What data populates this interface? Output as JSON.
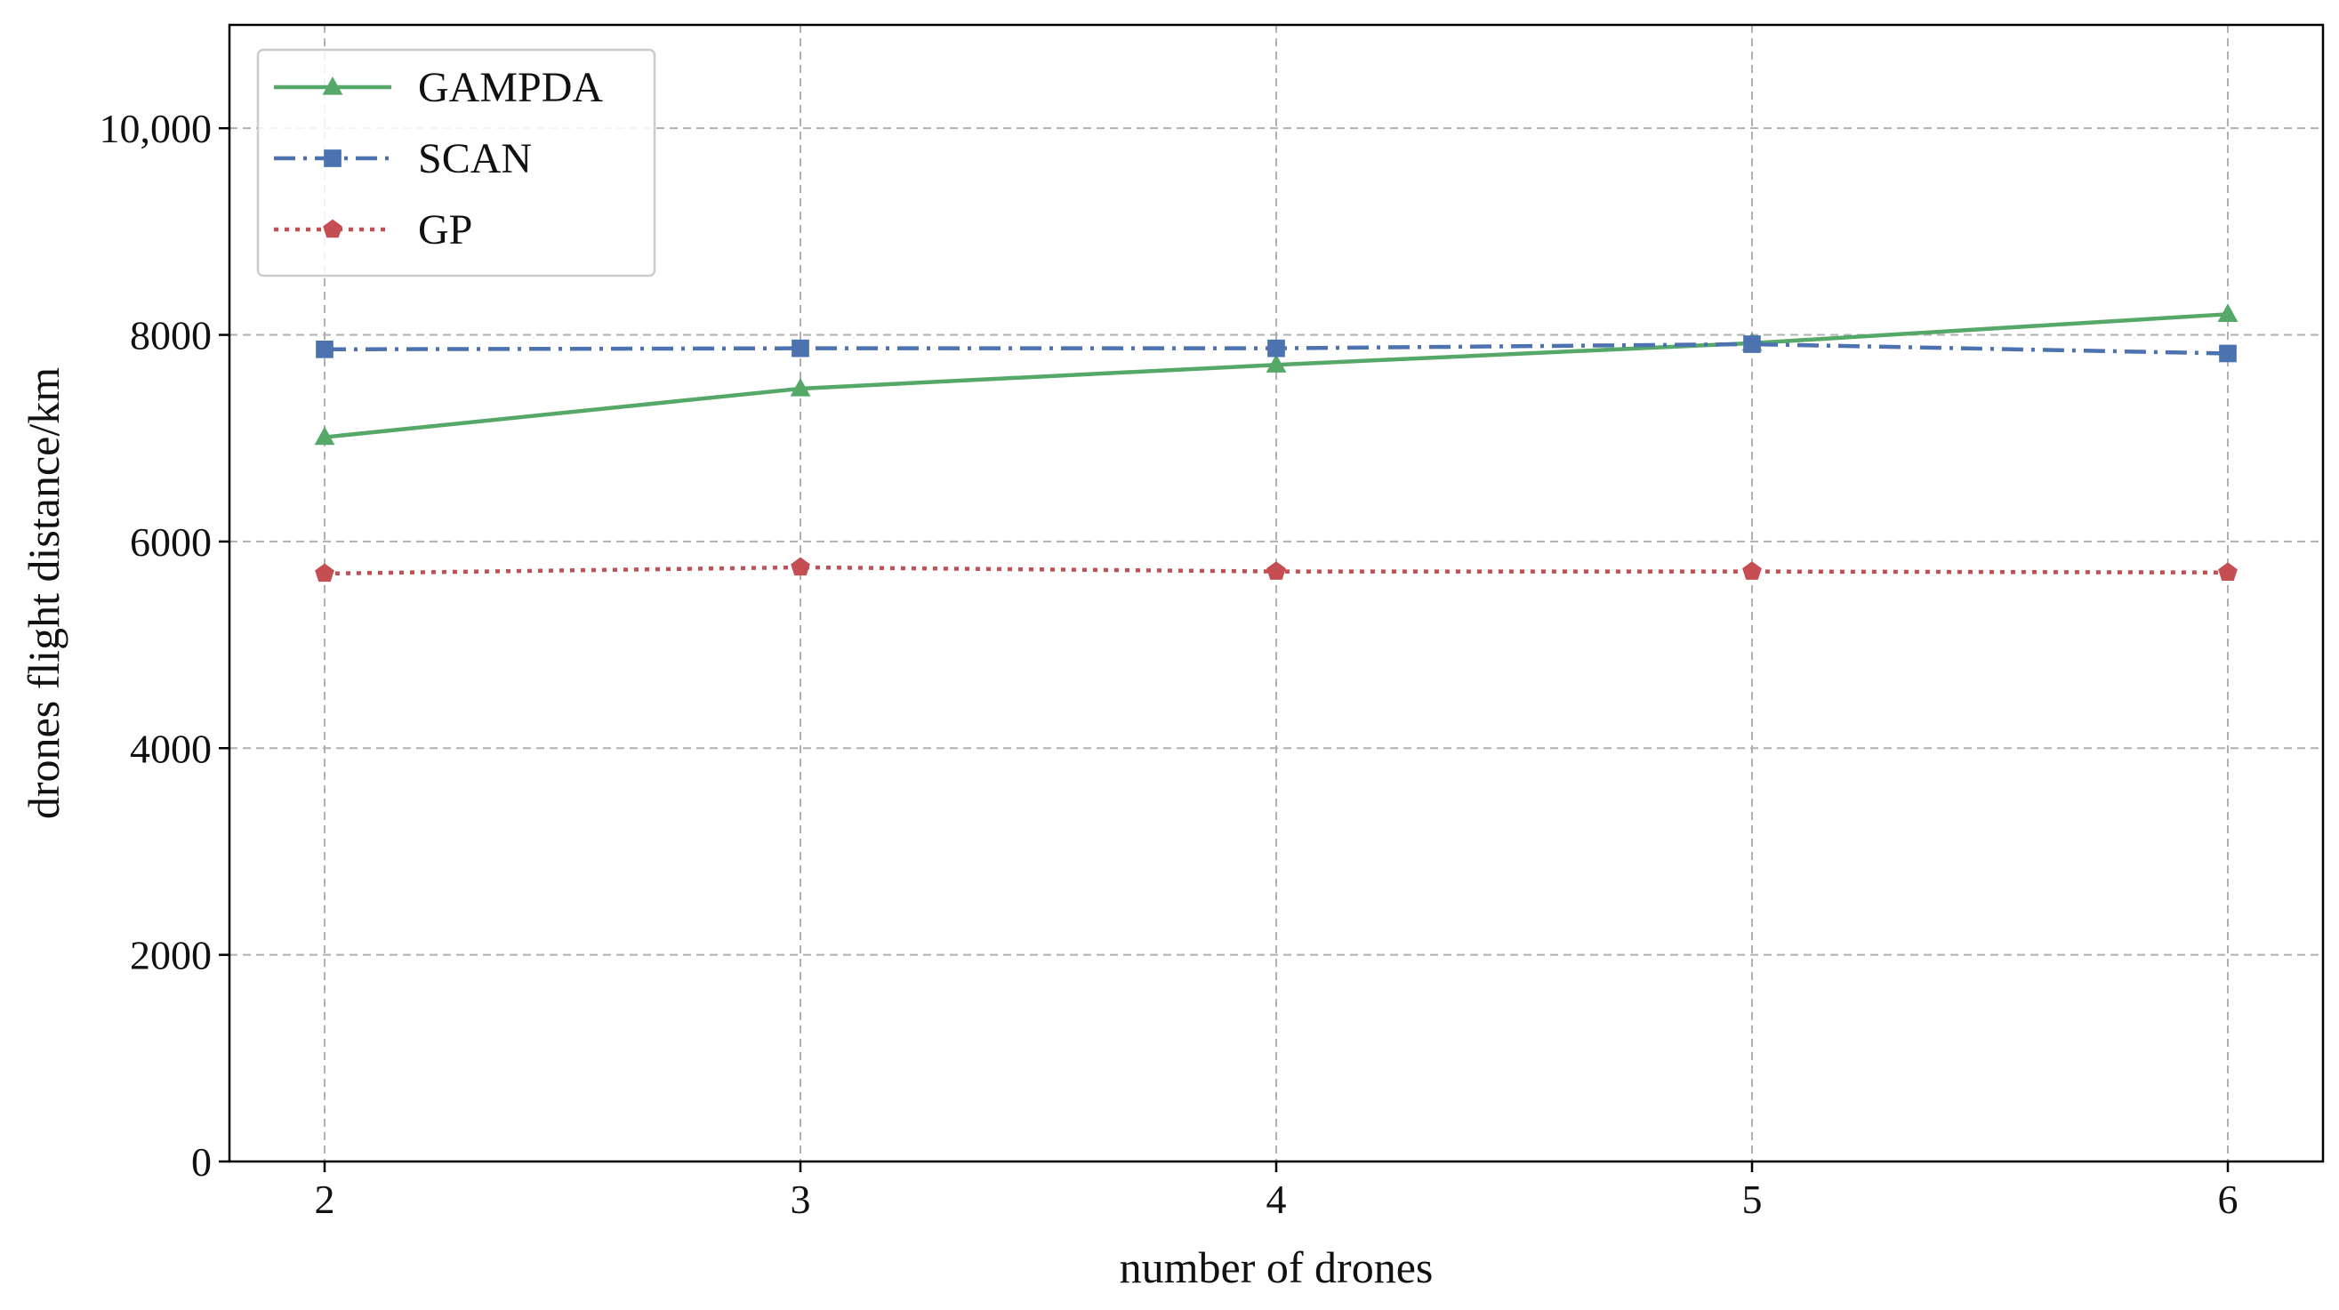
{
  "chart_data": {
    "type": "line",
    "title": "",
    "xlabel": "number of drones",
    "ylabel": "drones flight distance/km",
    "x": [
      2,
      3,
      4,
      5,
      6
    ],
    "xticks": [
      2,
      3,
      4,
      5,
      6
    ],
    "xtick_labels": [
      "2",
      "3",
      "4",
      "5",
      "6"
    ],
    "xlim": [
      1.8,
      6.2
    ],
    "yticks": [
      0,
      2000,
      4000,
      6000,
      8000,
      10000
    ],
    "ytick_labels": [
      "0",
      "2000",
      "4000",
      "6000",
      "8000",
      "10,000"
    ],
    "ylim": [
      0,
      11000
    ],
    "grid": true,
    "legend_position": "top-left",
    "series": [
      {
        "name": "GAMPDA",
        "values": [
          7010,
          7480,
          7710,
          7920,
          8200
        ],
        "color": "#55a868",
        "line_style": "solid",
        "marker": "triangle"
      },
      {
        "name": "SCAN",
        "values": [
          7860,
          7870,
          7870,
          7910,
          7820
        ],
        "color": "#4c72b0",
        "line_style": "dashdot",
        "marker": "square"
      },
      {
        "name": "GP",
        "values": [
          5690,
          5750,
          5710,
          5710,
          5700
        ],
        "color": "#c44e52",
        "line_style": "dotted",
        "marker": "pentagon"
      }
    ]
  }
}
